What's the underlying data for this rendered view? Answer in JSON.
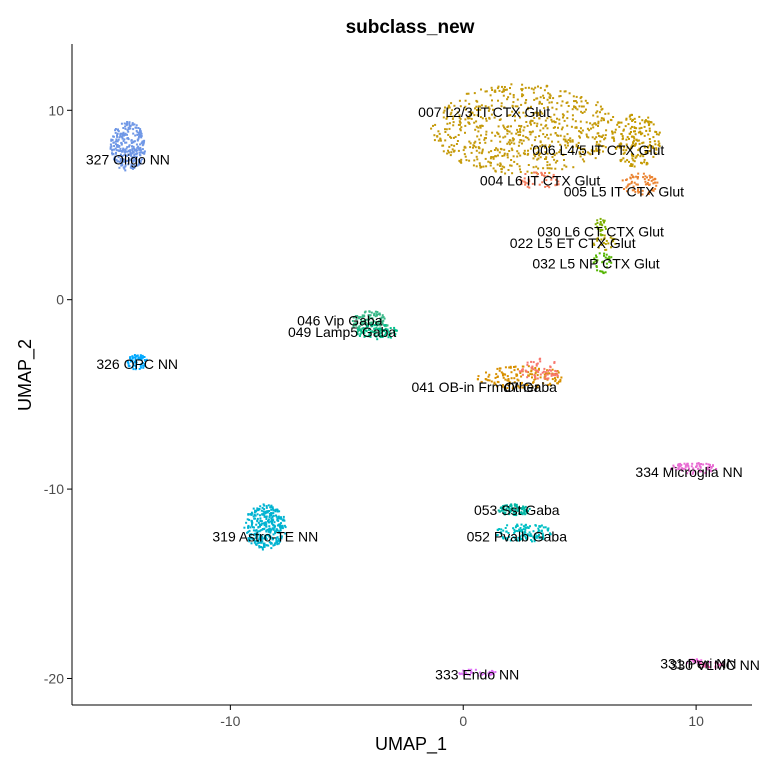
{
  "chart_data": {
    "type": "scatter",
    "title": "subclass_new",
    "xlabel": "UMAP_1",
    "ylabel": "UMAP_2",
    "xlim": [
      -16.8,
      12.4
    ],
    "ylim": [
      -21.4,
      13.5
    ],
    "xticks": [
      -10,
      0,
      10
    ],
    "yticks": [
      10,
      0,
      -10,
      -20
    ],
    "grid": false,
    "legend": "none",
    "clusters": [
      {
        "label": "007 L2/3 IT CTX Glut",
        "color": "#c59a0a",
        "label_x": 0.9,
        "label_y": 9.9,
        "cx": 2.6,
        "cy": 9.0,
        "rx": 4.0,
        "ry": 2.4,
        "n": 700
      },
      {
        "label": "006 L4/5 IT CTX Glut",
        "color": "#c49a00",
        "label_x": 5.8,
        "label_y": 7.9,
        "cx": 7.4,
        "cy": 8.4,
        "rx": 1.1,
        "ry": 1.4,
        "n": 180
      },
      {
        "label": "004 L6 IT CTX Glut",
        "color": "#f47b5b",
        "label_x": 3.3,
        "label_y": 6.3,
        "cx": 3.3,
        "cy": 6.3,
        "rx": 0.9,
        "ry": 0.5,
        "n": 45
      },
      {
        "label": "005 L5 IT CTX Glut",
        "color": "#ea8331",
        "label_x": 6.9,
        "label_y": 5.7,
        "cx": 7.6,
        "cy": 6.1,
        "rx": 0.8,
        "ry": 0.6,
        "n": 70
      },
      {
        "label": "030 L6 CT CTX Glut",
        "color": "#7cae00",
        "label_x": 5.9,
        "label_y": 3.6,
        "cx": 5.9,
        "cy": 3.8,
        "rx": 0.25,
        "ry": 0.6,
        "n": 25
      },
      {
        "label": "022 L5 ET CTX Glut",
        "color": "#b4a000",
        "label_x": 4.7,
        "label_y": 3.0,
        "cx": 6.1,
        "cy": 3.0,
        "rx": 0.5,
        "ry": 0.4,
        "n": 25
      },
      {
        "label": "032 L5 NP CTX Glut",
        "color": "#53b400",
        "label_x": 5.7,
        "label_y": 1.9,
        "cx": 6.0,
        "cy": 2.0,
        "rx": 0.4,
        "ry": 0.6,
        "n": 30
      },
      {
        "label": "327 Oligo NN",
        "color": "#6f97e6",
        "label_x": -14.4,
        "label_y": 7.4,
        "cx": -14.4,
        "cy": 8.1,
        "rx": 0.75,
        "ry": 1.3,
        "n": 280
      },
      {
        "label": "046 Vip Gaba",
        "color": "#39b888",
        "label_x": -5.3,
        "label_y": -1.1,
        "cx": -4.0,
        "cy": -1.2,
        "rx": 0.8,
        "ry": 0.6,
        "n": 120
      },
      {
        "label": "049 Lamp5 Gaba",
        "color": "#00c08b",
        "label_x": -5.2,
        "label_y": -1.7,
        "cx": -3.7,
        "cy": -1.7,
        "rx": 0.9,
        "ry": 0.4,
        "n": 80
      },
      {
        "label": "326 OPC NN",
        "color": "#00a9ff",
        "label_x": -14.0,
        "label_y": -3.4,
        "cx": -14.0,
        "cy": -3.3,
        "rx": 0.45,
        "ry": 0.4,
        "n": 60
      },
      {
        "label": "041 OB-in Frmd7 Gaba",
        "color": "#d89000",
        "label_x": 0.9,
        "label_y": -4.6,
        "cx": 2.5,
        "cy": -4.1,
        "rx": 1.9,
        "ry": 0.6,
        "n": 140
      },
      {
        "label": "Other",
        "color": "#f8766d",
        "label_x": 2.5,
        "label_y": -4.6,
        "cx": 3.3,
        "cy": -3.7,
        "rx": 0.9,
        "ry": 0.6,
        "n": 60
      },
      {
        "label": "334 Microglia NN",
        "color": "#e86cd3",
        "label_x": 9.7,
        "label_y": -9.1,
        "cx": 9.9,
        "cy": -8.9,
        "rx": 1.0,
        "ry": 0.3,
        "n": 70
      },
      {
        "label": "319 Astro-TE NN",
        "color": "#00b3d1",
        "label_x": -8.5,
        "label_y": -12.5,
        "cx": -8.5,
        "cy": -12.0,
        "rx": 0.9,
        "ry": 1.2,
        "n": 320
      },
      {
        "label": "053 Sst Gaba",
        "color": "#00b6a4",
        "label_x": 2.3,
        "label_y": -11.1,
        "cx": 2.2,
        "cy": -11.1,
        "rx": 0.7,
        "ry": 0.3,
        "n": 90
      },
      {
        "label": "052 Pvalb Gaba",
        "color": "#00bfc4",
        "label_x": 2.3,
        "label_y": -12.5,
        "cx": 2.6,
        "cy": -12.3,
        "rx": 1.2,
        "ry": 0.5,
        "n": 130
      },
      {
        "label": "333 Endo NN",
        "color": "#df70f8",
        "label_x": 0.6,
        "label_y": -19.8,
        "cx": 0.6,
        "cy": -19.7,
        "rx": 0.8,
        "ry": 0.2,
        "n": 35
      },
      {
        "label": "331 Peri NN",
        "color": "#f564e3",
        "label_x": 10.1,
        "label_y": -19.2,
        "cx": 10.1,
        "cy": -19.1,
        "rx": 0.6,
        "ry": 0.15,
        "n": 20
      },
      {
        "label": "330 VLMC NN",
        "color": "#ff62bc",
        "label_x": 10.8,
        "label_y": -19.3,
        "cx": 10.7,
        "cy": -19.3,
        "rx": 0.6,
        "ry": 0.15,
        "n": 20
      }
    ]
  }
}
